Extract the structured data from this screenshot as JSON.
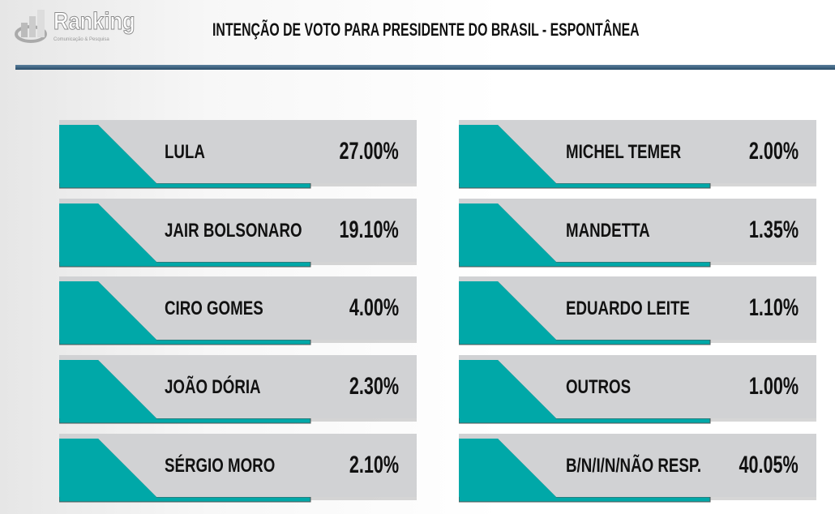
{
  "header": {
    "logo_text": "Ranking",
    "logo_sub": "Comunicação & Pesquisa",
    "title": "INTENÇÃO DE VOTO PARA PRESIDENTE DO BRASIL - ESPONTÂNEA"
  },
  "colors": {
    "teal": "#00a8a8",
    "card": "#d1d2d4",
    "rule": "#2f5575"
  },
  "chart_data": {
    "type": "table",
    "title": "INTENÇÃO DE VOTO PARA PRESIDENTE DO BRASIL - ESPONTÂNEA",
    "categories": [
      "LULA",
      "JAIR BOLSONARO",
      "CIRO GOMES",
      "JOÃO DÓRIA",
      "SÉRGIO MORO",
      "MICHEL TEMER",
      "MANDETTA",
      "EDUARDO LEITE",
      "OUTROS",
      "B/N/I/N/NÃO RESP."
    ],
    "values": [
      27.0,
      19.1,
      4.0,
      2.3,
      2.1,
      2.0,
      1.35,
      1.1,
      1.0,
      40.05
    ],
    "labels": [
      "27.00%",
      "19.10%",
      "4.00%",
      "2.30%",
      "2.10%",
      "2.00%",
      "1.35%",
      "1.10%",
      "1.00%",
      "40.05%"
    ]
  }
}
